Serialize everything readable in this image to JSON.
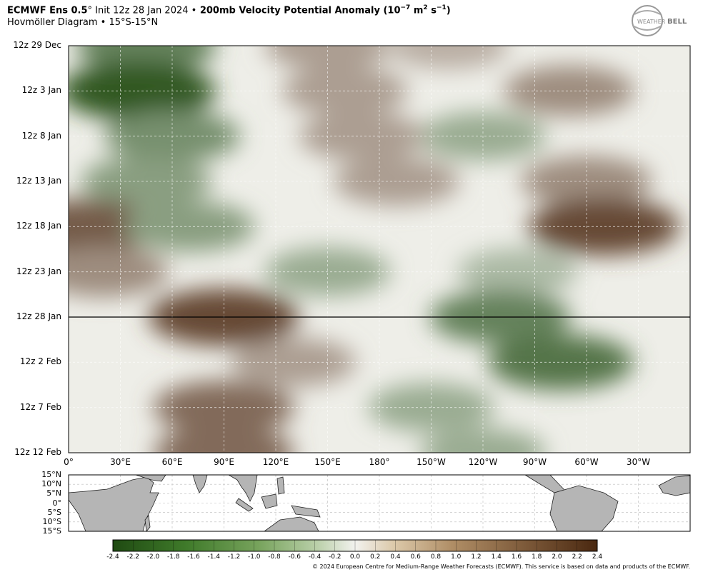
{
  "header": {
    "model": "ECMWF Ens 0.5",
    "degree": "°",
    "init": " Init 12z 28 Jan 2024 ",
    "bullet": "•",
    "field": " 200mb Velocity Potential Anomaly (10",
    "exp": "−7",
    "unit_m": " m",
    "exp2": "2",
    "unit_s": " s",
    "exp3": "−1",
    "close": ")",
    "subtitle": "Hovmöller Diagram • 15°S-15°N"
  },
  "logo": {
    "text_a": "WEATHER",
    "text_b": "BELL"
  },
  "chart_data": {
    "type": "heatmap",
    "title": "200mb Velocity Potential Anomaly",
    "y_ticks": [
      "12z 29 Dec",
      "12z 3 Jan",
      "12z 8 Jan",
      "12z 13 Jan",
      "12z 18 Jan",
      "12z 23 Jan",
      "12z 28 Jan",
      "12z 2 Feb",
      "12z 7 Feb",
      "12z 12 Feb"
    ],
    "x_ticks": [
      "0°",
      "30°E",
      "60°E",
      "90°E",
      "120°E",
      "150°E",
      "180°",
      "150°W",
      "120°W",
      "90°W",
      "60°W",
      "30°W"
    ],
    "x_range": [
      0,
      360
    ],
    "init_line": "12z 28 Jan",
    "lat_ticks": [
      "15°N",
      "10°N",
      "5°N",
      "0°",
      "5°S",
      "10°S",
      "15°S"
    ],
    "colorbar": {
      "ticks": [
        "-2.4",
        "-2.2",
        "-2.0",
        "-1.8",
        "-1.6",
        "-1.4",
        "-1.2",
        "-1.0",
        "-0.8",
        "-0.6",
        "-0.4",
        "-0.2",
        "0.0",
        "0.2",
        "0.4",
        "0.6",
        "0.8",
        "1.0",
        "1.2",
        "1.4",
        "1.6",
        "1.8",
        "2.0",
        "2.2",
        "2.4"
      ],
      "range": [
        -2.4,
        2.4
      ],
      "negative_color": "#1f4a12",
      "neutral_color": "#f2f2ee",
      "positive_color": "#4a2810"
    },
    "approximate_field": [
      {
        "date": "12z 29 Dec",
        "lon": 45,
        "value": -1.6
      },
      {
        "date": "12z 29 Dec",
        "lon": 150,
        "value": 1.0
      },
      {
        "date": "12z 29 Dec",
        "lon": 220,
        "value": 0.8
      },
      {
        "date": "12z 3 Jan",
        "lon": 40,
        "value": -2.2
      },
      {
        "date": "12z 3 Jan",
        "lon": 160,
        "value": 1.0
      },
      {
        "date": "12z 3 Jan",
        "lon": 290,
        "value": 1.2
      },
      {
        "date": "12z 8 Jan",
        "lon": 60,
        "value": -1.4
      },
      {
        "date": "12z 8 Jan",
        "lon": 240,
        "value": -1.0
      },
      {
        "date": "12z 8 Jan",
        "lon": 170,
        "value": 1.0
      },
      {
        "date": "12z 13 Jan",
        "lon": 45,
        "value": -1.2
      },
      {
        "date": "12z 13 Jan",
        "lon": 190,
        "value": 1.0
      },
      {
        "date": "12z 13 Jan",
        "lon": 300,
        "value": 1.2
      },
      {
        "date": "12z 18 Jan",
        "lon": 10,
        "value": 1.8
      },
      {
        "date": "12z 18 Jan",
        "lon": 70,
        "value": -1.2
      },
      {
        "date": "12z 18 Jan",
        "lon": 310,
        "value": 2.0
      },
      {
        "date": "12z 23 Jan",
        "lon": 20,
        "value": 1.2
      },
      {
        "date": "12z 23 Jan",
        "lon": 150,
        "value": -1.0
      },
      {
        "date": "12z 23 Jan",
        "lon": 260,
        "value": -0.8
      },
      {
        "date": "12z 28 Jan",
        "lon": 90,
        "value": 2.0
      },
      {
        "date": "12z 28 Jan",
        "lon": 250,
        "value": -1.6
      },
      {
        "date": "12z 2 Feb",
        "lon": 130,
        "value": 1.0
      },
      {
        "date": "12z 2 Feb",
        "lon": 285,
        "value": -1.8
      },
      {
        "date": "12z 7 Feb",
        "lon": 90,
        "value": 1.6
      },
      {
        "date": "12z 7 Feb",
        "lon": 210,
        "value": -1.0
      },
      {
        "date": "12z 12 Feb",
        "lon": 90,
        "value": 1.6
      },
      {
        "date": "12z 12 Feb",
        "lon": 240,
        "value": -1.0
      }
    ]
  },
  "copyright": "© 2024 European Centre for Medium-Range Weather Forecasts (ECMWF). This service is based on data and products of the ECMWF."
}
